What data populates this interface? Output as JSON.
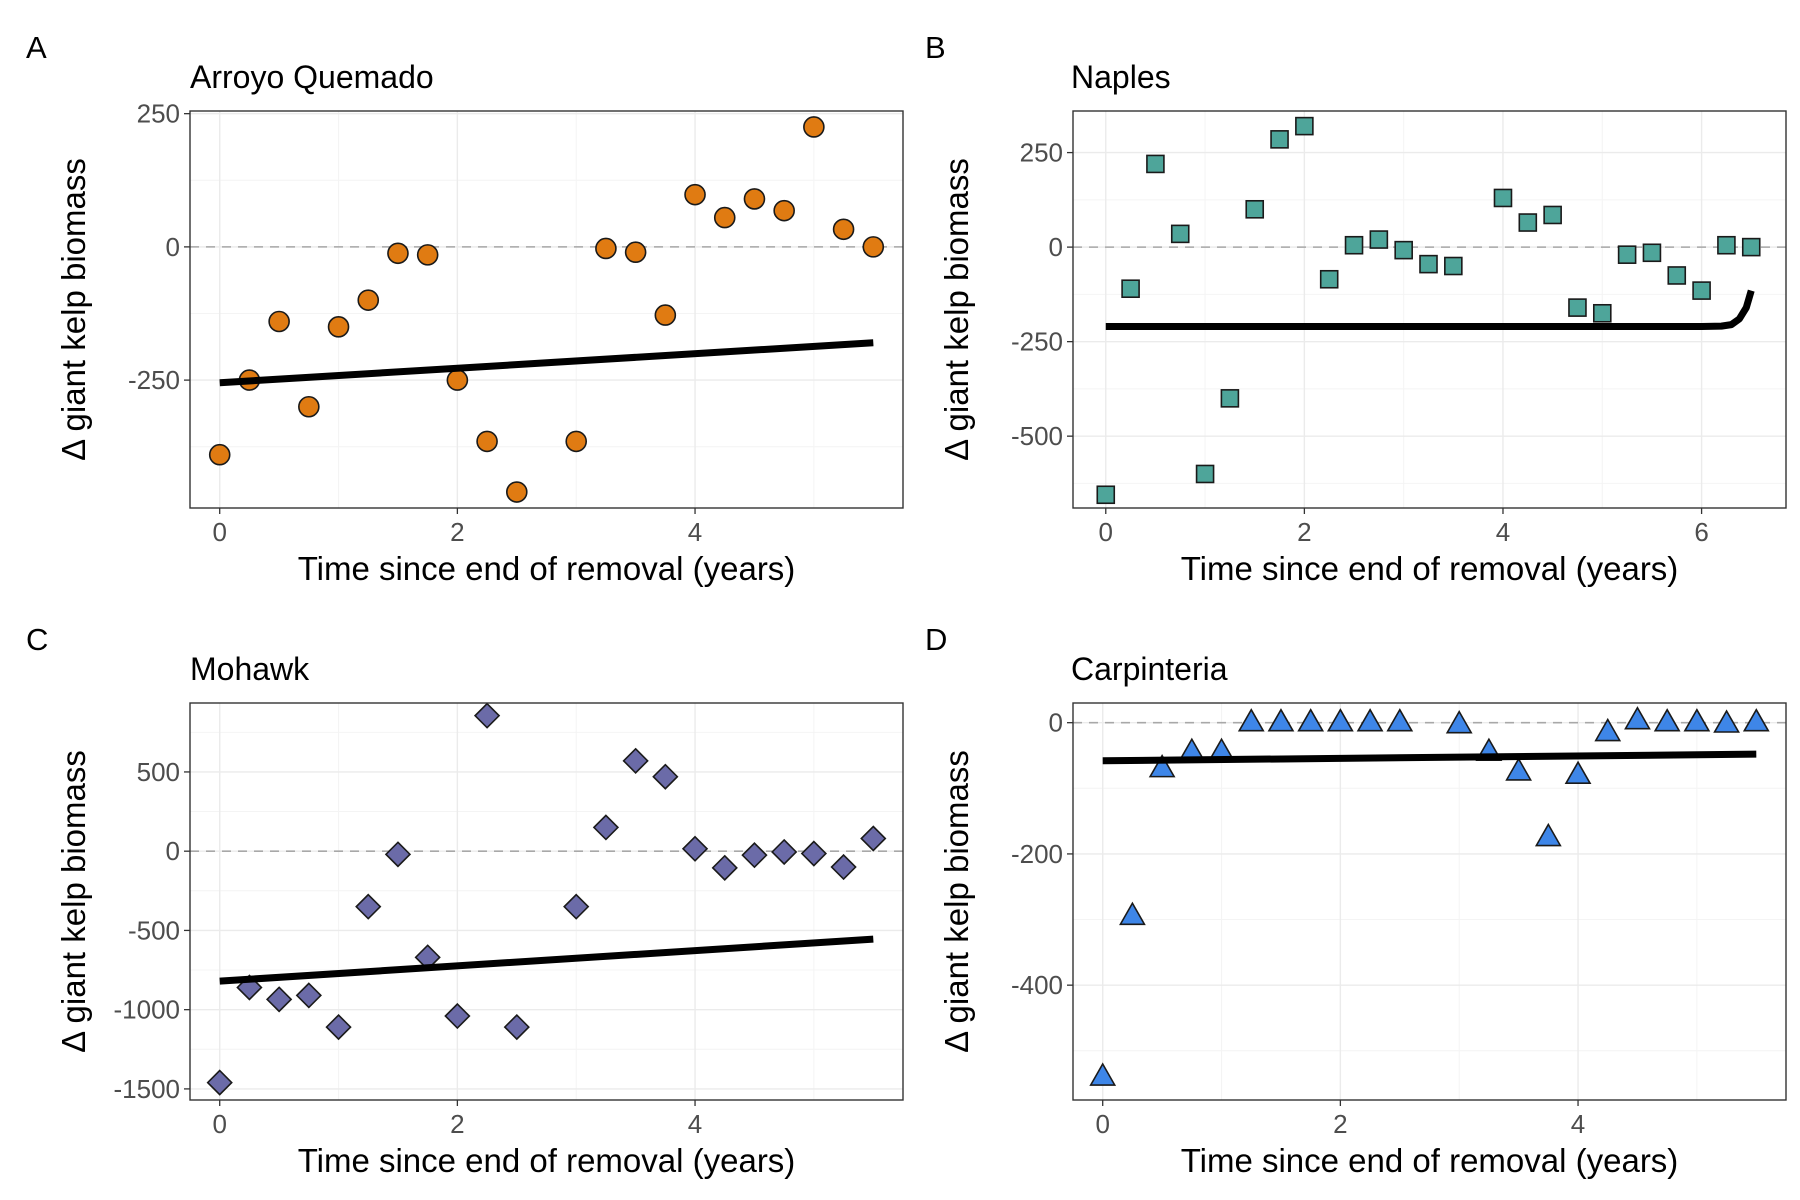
{
  "chart_data": [
    {
      "panel": "A",
      "type": "scatter",
      "title": "Arroyo Quemado",
      "xlabel": "Time since end of removal (years)",
      "ylabel": "Δ giant kelp biomass",
      "xlim": [
        -0.25,
        5.75
      ],
      "ylim": [
        -490,
        255
      ],
      "xticks": [
        0,
        2,
        4
      ],
      "yticks": [
        -250,
        0,
        250
      ],
      "xtick_labels": [
        "0",
        "2",
        "4"
      ],
      "ytick_labels": [
        "-250",
        "0",
        "250"
      ],
      "grid": true,
      "reference_line_y": 0,
      "marker": "circle",
      "color": "#E07B12",
      "points": [
        [
          0,
          -390
        ],
        [
          0.25,
          -250
        ],
        [
          0.5,
          -140
        ],
        [
          0.75,
          -300
        ],
        [
          1,
          -150
        ],
        [
          1.25,
          -100
        ],
        [
          1.5,
          -12
        ],
        [
          1.75,
          -15
        ],
        [
          2,
          -250
        ],
        [
          2.25,
          -365
        ],
        [
          2.5,
          -460
        ],
        [
          3,
          -365
        ],
        [
          3.25,
          -3
        ],
        [
          3.5,
          -10
        ],
        [
          3.75,
          -128
        ],
        [
          4,
          98
        ],
        [
          4.25,
          55
        ],
        [
          4.5,
          90
        ],
        [
          4.75,
          68
        ],
        [
          5,
          225
        ],
        [
          5.25,
          33
        ],
        [
          5.5,
          0
        ]
      ],
      "fit": [
        [
          0,
          -255
        ],
        [
          5.5,
          -180
        ]
      ]
    },
    {
      "panel": "B",
      "type": "scatter",
      "title": "Naples",
      "xlabel": "Time since end of removal (years)",
      "ylabel": "Δ giant kelp biomass",
      "xlim": [
        -0.33,
        6.85
      ],
      "ylim": [
        -690,
        360
      ],
      "xticks": [
        0,
        2,
        4,
        6
      ],
      "yticks": [
        -500,
        -250,
        0,
        250
      ],
      "xtick_labels": [
        "0",
        "2",
        "4",
        "6"
      ],
      "ytick_labels": [
        "-500",
        "-250",
        "0",
        "250"
      ],
      "grid": true,
      "reference_line_y": 0,
      "marker": "square",
      "color": "#4EA59A",
      "points": [
        [
          0,
          -655
        ],
        [
          0.25,
          -110
        ],
        [
          0.5,
          220
        ],
        [
          0.75,
          35
        ],
        [
          1,
          -600
        ],
        [
          1.25,
          -400
        ],
        [
          1.5,
          100
        ],
        [
          1.75,
          285
        ],
        [
          2,
          320
        ],
        [
          2.25,
          -85
        ],
        [
          2.5,
          5
        ],
        [
          2.75,
          20
        ],
        [
          3,
          -8
        ],
        [
          3.25,
          -45
        ],
        [
          3.5,
          -50
        ],
        [
          4,
          130
        ],
        [
          4.25,
          65
        ],
        [
          4.5,
          85
        ],
        [
          4.75,
          -160
        ],
        [
          5,
          -175
        ],
        [
          5.25,
          -20
        ],
        [
          5.5,
          -15
        ],
        [
          5.75,
          -75
        ],
        [
          6,
          -115
        ],
        [
          6.25,
          5
        ],
        [
          6.5,
          0
        ]
      ],
      "fit": [
        [
          0,
          -210
        ],
        [
          1,
          -210
        ],
        [
          2,
          -210
        ],
        [
          3,
          -210
        ],
        [
          4,
          -210
        ],
        [
          5,
          -210
        ],
        [
          6,
          -210
        ],
        [
          6.2,
          -209
        ],
        [
          6.3,
          -205
        ],
        [
          6.38,
          -190
        ],
        [
          6.45,
          -160
        ],
        [
          6.5,
          -115
        ]
      ]
    },
    {
      "panel": "C",
      "type": "scatter",
      "title": "Mohawk",
      "xlabel": "Time since end of removal (years)",
      "ylabel": "Δ giant kelp biomass",
      "xlim": [
        -0.25,
        5.75
      ],
      "ylim": [
        -1570,
        935
      ],
      "xticks": [
        0,
        2,
        4
      ],
      "yticks": [
        -1500,
        -1000,
        -500,
        0,
        500
      ],
      "xtick_labels": [
        "0",
        "2",
        "4"
      ],
      "ytick_labels": [
        "-1500",
        "-1000",
        "-500",
        "0",
        "500"
      ],
      "grid": true,
      "reference_line_y": 0,
      "marker": "diamond",
      "color": "#6B6BA8",
      "points": [
        [
          0,
          -1460
        ],
        [
          0.25,
          -860
        ],
        [
          0.5,
          -935
        ],
        [
          0.75,
          -910
        ],
        [
          1,
          -1110
        ],
        [
          1.25,
          -350
        ],
        [
          1.5,
          -20
        ],
        [
          1.75,
          -670
        ],
        [
          2,
          -1040
        ],
        [
          2.25,
          855
        ],
        [
          2.5,
          -1110
        ],
        [
          3,
          -350
        ],
        [
          3.25,
          150
        ],
        [
          3.5,
          570
        ],
        [
          3.75,
          470
        ],
        [
          4,
          15
        ],
        [
          4.25,
          -105
        ],
        [
          4.5,
          -25
        ],
        [
          4.75,
          -5
        ],
        [
          5,
          -15
        ],
        [
          5.25,
          -100
        ],
        [
          5.5,
          80
        ]
      ],
      "fit": [
        [
          0,
          -820
        ],
        [
          5.5,
          -555
        ]
      ]
    },
    {
      "panel": "D",
      "type": "scatter",
      "title": "Carpinteria",
      "xlabel": "Time since end of removal (years)",
      "ylabel": "Δ giant kelp biomass",
      "xlim": [
        -0.25,
        5.75
      ],
      "ylim": [
        -575,
        30
      ],
      "xticks": [
        0,
        2,
        4
      ],
      "yticks": [
        -400,
        -200,
        0
      ],
      "xtick_labels": [
        "0",
        "2",
        "4"
      ],
      "ytick_labels": [
        "-400",
        "-200",
        "0"
      ],
      "grid": true,
      "reference_line_y": 0,
      "marker": "triangle",
      "color": "#3E86E8",
      "points": [
        [
          0,
          -540
        ],
        [
          0.25,
          -295
        ],
        [
          0.5,
          -70
        ],
        [
          0.75,
          -45
        ],
        [
          1,
          -45
        ],
        [
          1.25,
          0
        ],
        [
          1.5,
          0
        ],
        [
          1.75,
          0
        ],
        [
          2,
          0
        ],
        [
          2.25,
          0
        ],
        [
          2.5,
          0
        ],
        [
          3,
          -3
        ],
        [
          3.25,
          -45
        ],
        [
          3.5,
          -75
        ],
        [
          3.75,
          -175
        ],
        [
          4,
          -80
        ],
        [
          4.25,
          -15
        ],
        [
          4.5,
          3
        ],
        [
          4.75,
          0
        ],
        [
          5,
          0
        ],
        [
          5.25,
          -2
        ],
        [
          5.5,
          0
        ]
      ],
      "fit": [
        [
          0,
          -58
        ],
        [
          5.5,
          -48
        ]
      ]
    }
  ]
}
